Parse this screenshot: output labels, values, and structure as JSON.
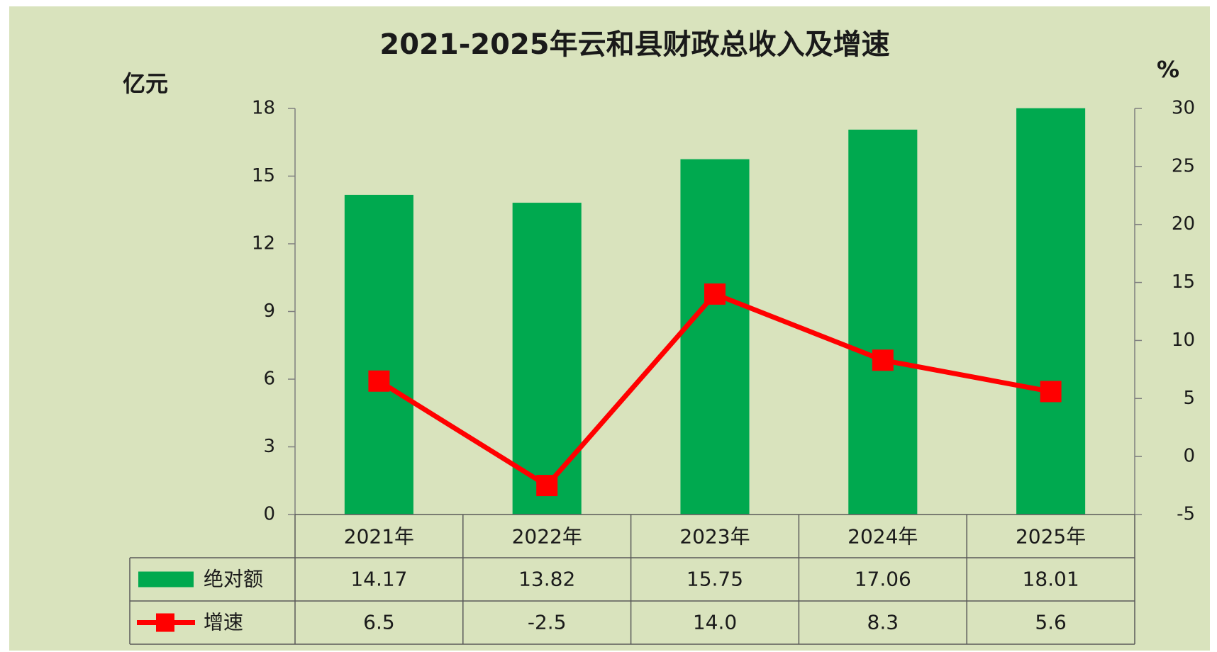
{
  "chart_data": {
    "type": "bar-line",
    "title": "2021-2025年云和县财政总收入及增速",
    "y_label": "亿元",
    "y2_label": "%",
    "categories": [
      "2021年",
      "2022年",
      "2023年",
      "2024年",
      "2025年"
    ],
    "series": [
      {
        "name": "绝对额",
        "type": "bar",
        "color": "#00a94f",
        "values": [
          14.17,
          13.82,
          15.75,
          17.06,
          18.01
        ]
      },
      {
        "name": "增速",
        "type": "line",
        "axis": "y2",
        "color": "#ff0000",
        "values": [
          6.5,
          -2.5,
          14.0,
          8.3,
          5.6
        ],
        "value_labels": [
          "6.5",
          "-2.5",
          "14.0",
          "8.3",
          "5.6"
        ]
      }
    ],
    "ylim": [
      0,
      18
    ],
    "yticks": [
      0,
      3,
      6,
      9,
      12,
      15,
      18
    ],
    "y2lim": [
      -5,
      30
    ],
    "y2ticks": [
      -5,
      0,
      5,
      10,
      15,
      20,
      25,
      30
    ],
    "grid": false,
    "data_table": true
  }
}
